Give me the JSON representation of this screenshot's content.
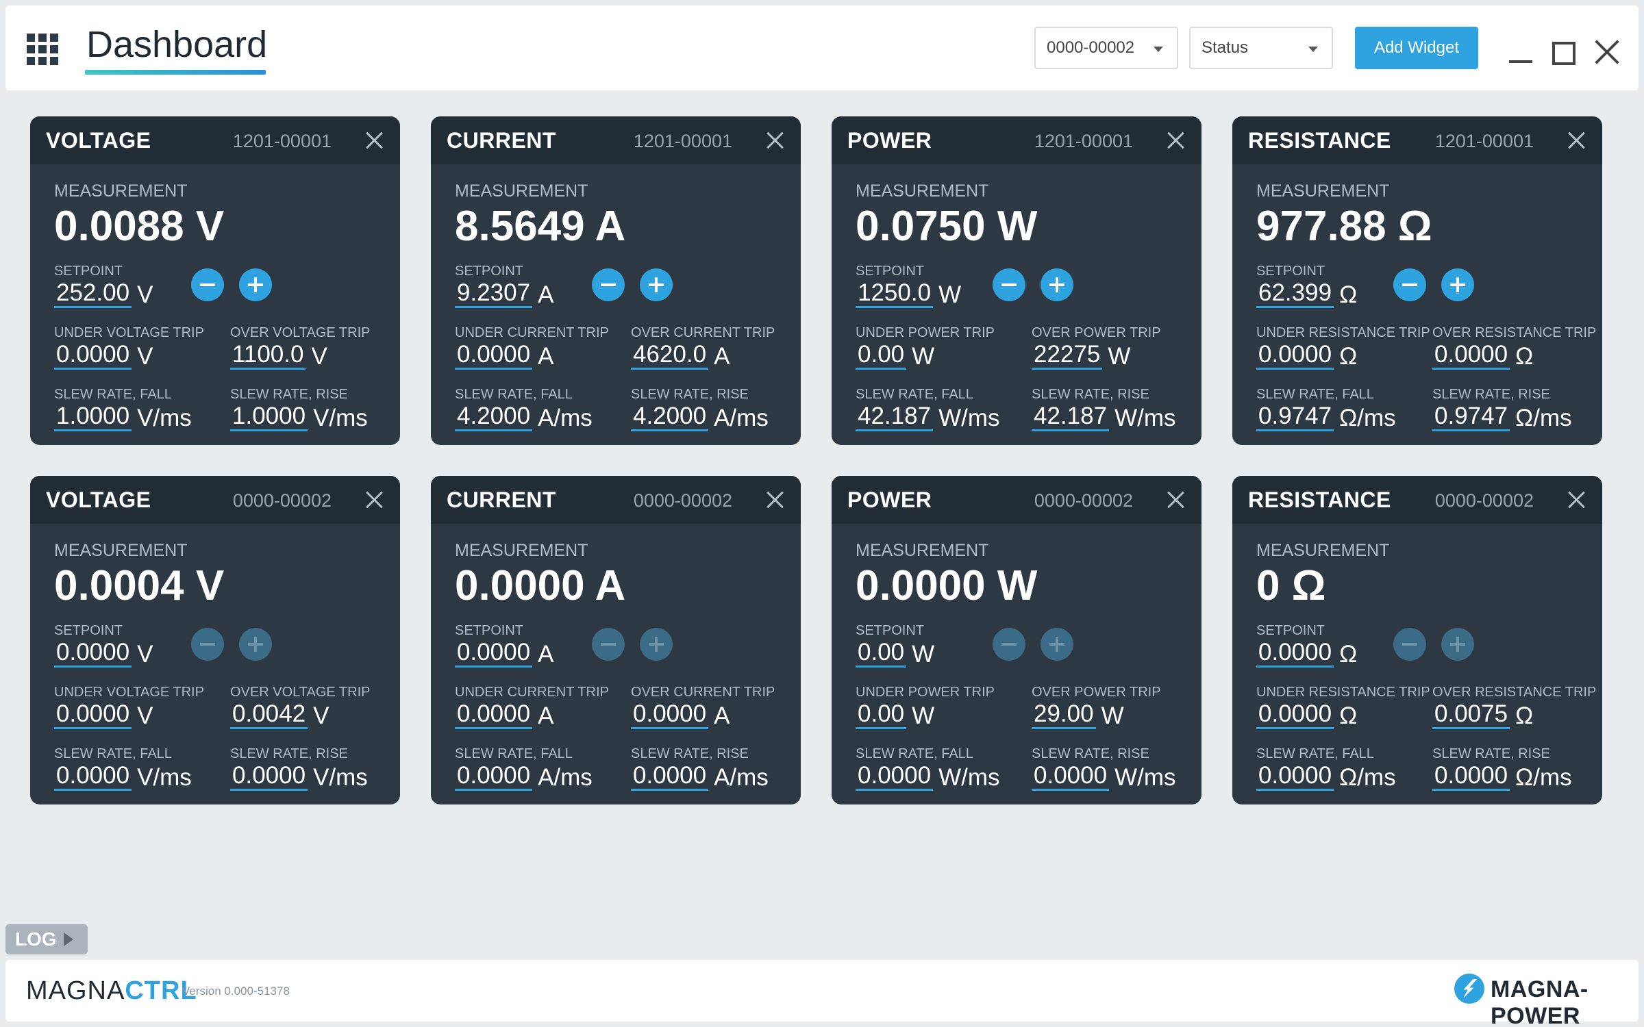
{
  "header": {
    "title": "Dashboard",
    "device_select": "0000-00002",
    "status_select": "Status",
    "add_widget_label": "Add Widget"
  },
  "cards": [
    {
      "title": "VOLTAGE",
      "id": "1201-00001",
      "measurement_label": "MEASUREMENT",
      "measurement": "0.0088 V",
      "setpoint_label": "SETPOINT",
      "setpoint": "252.00",
      "unit": "V",
      "under_trip_label": "UNDER VOLTAGE TRIP",
      "under_trip": "0.0000",
      "over_trip_label": "OVER VOLTAGE TRIP",
      "over_trip": "1100.0",
      "slew_fall_label": "SLEW RATE, FALL",
      "slew_fall": "1.0000",
      "slew_rise_label": "SLEW RATE, RISE",
      "slew_rise": "1.0000",
      "slew_unit": "V/ms"
    },
    {
      "title": "CURRENT",
      "id": "1201-00001",
      "measurement_label": "MEASUREMENT",
      "measurement": "8.5649 A",
      "setpoint_label": "SETPOINT",
      "setpoint": "9.2307",
      "unit": "A",
      "under_trip_label": "UNDER CURRENT TRIP",
      "under_trip": "0.0000",
      "over_trip_label": "OVER CURRENT TRIP",
      "over_trip": "4620.0",
      "slew_fall_label": "SLEW RATE, FALL",
      "slew_fall": "4.2000",
      "slew_rise_label": "SLEW RATE, RISE",
      "slew_rise": "4.2000",
      "slew_unit": "A/ms"
    },
    {
      "title": "POWER",
      "id": "1201-00001",
      "measurement_label": "MEASUREMENT",
      "measurement": "0.0750 W",
      "setpoint_label": "SETPOINT",
      "setpoint": "1250.0",
      "unit": "W",
      "under_trip_label": "UNDER POWER TRIP",
      "under_trip": "0.00",
      "over_trip_label": "OVER POWER TRIP",
      "over_trip": "22275",
      "slew_fall_label": "SLEW RATE, FALL",
      "slew_fall": "42.187",
      "slew_rise_label": "SLEW RATE, RISE",
      "slew_rise": "42.187",
      "slew_unit": "W/ms"
    },
    {
      "title": "RESISTANCE",
      "id": "1201-00001",
      "measurement_label": "MEASUREMENT",
      "measurement": "977.88 Ω",
      "setpoint_label": "SETPOINT",
      "setpoint": "62.399",
      "unit": "Ω",
      "under_trip_label": "UNDER RESISTANCE TRIP",
      "under_trip": "0.0000",
      "over_trip_label": "OVER RESISTANCE TRIP",
      "over_trip": "0.0000",
      "slew_fall_label": "SLEW RATE, FALL",
      "slew_fall": "0.9747",
      "slew_rise_label": "SLEW RATE, RISE",
      "slew_rise": "0.9747",
      "slew_unit": "Ω/ms"
    },
    {
      "title": "VOLTAGE",
      "id": "0000-00002",
      "measurement_label": "MEASUREMENT",
      "measurement": "0.0004 V",
      "setpoint_label": "SETPOINT",
      "setpoint": "0.0000",
      "unit": "V",
      "under_trip_label": "UNDER VOLTAGE TRIP",
      "under_trip": "0.0000",
      "over_trip_label": "OVER VOLTAGE TRIP",
      "over_trip": "0.0042",
      "slew_fall_label": "SLEW RATE, FALL",
      "slew_fall": "0.0000",
      "slew_rise_label": "SLEW RATE, RISE",
      "slew_rise": "0.0000",
      "slew_unit": "V/ms"
    },
    {
      "title": "CURRENT",
      "id": "0000-00002",
      "measurement_label": "MEASUREMENT",
      "measurement": "0.0000 A",
      "setpoint_label": "SETPOINT",
      "setpoint": "0.0000",
      "unit": "A",
      "under_trip_label": "UNDER CURRENT TRIP",
      "under_trip": "0.0000",
      "over_trip_label": "OVER CURRENT TRIP",
      "over_trip": "0.0000",
      "slew_fall_label": "SLEW RATE, FALL",
      "slew_fall": "0.0000",
      "slew_rise_label": "SLEW RATE, RISE",
      "slew_rise": "0.0000",
      "slew_unit": "A/ms"
    },
    {
      "title": "POWER",
      "id": "0000-00002",
      "measurement_label": "MEASUREMENT",
      "measurement": "0.0000 W",
      "setpoint_label": "SETPOINT",
      "setpoint": "0.00",
      "unit": "W",
      "under_trip_label": "UNDER POWER TRIP",
      "under_trip": "0.00",
      "over_trip_label": "OVER POWER TRIP",
      "over_trip": "29.00",
      "slew_fall_label": "SLEW RATE, FALL",
      "slew_fall": "0.0000",
      "slew_rise_label": "SLEW RATE, RISE",
      "slew_rise": "0.0000",
      "slew_unit": "W/ms"
    },
    {
      "title": "RESISTANCE",
      "id": "0000-00002",
      "measurement_label": "MEASUREMENT",
      "measurement": "0 Ω",
      "setpoint_label": "SETPOINT",
      "setpoint": "0.0000",
      "unit": "Ω",
      "under_trip_label": "UNDER RESISTANCE TRIP",
      "under_trip": "0.0000",
      "over_trip_label": "OVER RESISTANCE TRIP",
      "over_trip": "0.0075",
      "slew_fall_label": "SLEW RATE, FALL",
      "slew_fall": "0.0000",
      "slew_rise_label": "SLEW RATE, RISE",
      "slew_rise": "0.0000",
      "slew_unit": "Ω/ms"
    }
  ],
  "log": {
    "label": "LOG"
  },
  "footer": {
    "brand_prefix": "MAGNA",
    "brand_suffix": "CTRL",
    "version": "Version 0.000-51378",
    "company": "MAGNA-POWER"
  },
  "icons": {
    "apps": "grid-icon",
    "minimize": "minimize-icon",
    "maximize": "maximize-icon",
    "close": "close-icon",
    "decrement": "minus-icon",
    "increment": "plus-icon",
    "log_toggle": "play-icon"
  },
  "colors": {
    "accent": "#2fa3e0",
    "card_bg": "#2d3843",
    "card_header": "#222c35",
    "page_bg": "#e9ecef"
  }
}
